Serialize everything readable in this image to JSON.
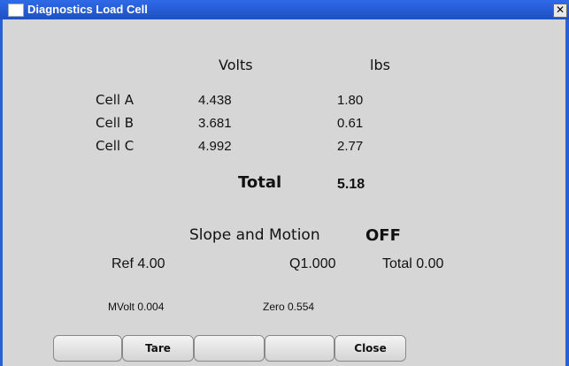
{
  "window": {
    "title": "Diagnostics Load Cell"
  },
  "readings": {
    "headers": [
      "Volts",
      "lbs"
    ],
    "rows": [
      {
        "label": "Cell A",
        "volts": "4.438",
        "lbs": "1.80"
      },
      {
        "label": "Cell B",
        "volts": "3.681",
        "lbs": "0.61"
      },
      {
        "label": "Cell C",
        "volts": "4.992",
        "lbs": "2.77"
      }
    ],
    "total": {
      "label": "Total",
      "value": "5.18"
    }
  },
  "slope_motion": {
    "label": "Slope and Motion",
    "status": "OFF"
  },
  "status": {
    "ref": "Ref 4.00",
    "q": "Q1.000",
    "total": "Total 0.00",
    "mvolt": "MVolt 0.004",
    "zero": "Zero 0.554"
  },
  "buttons": {
    "tare": "Tare",
    "close": "Close"
  }
}
